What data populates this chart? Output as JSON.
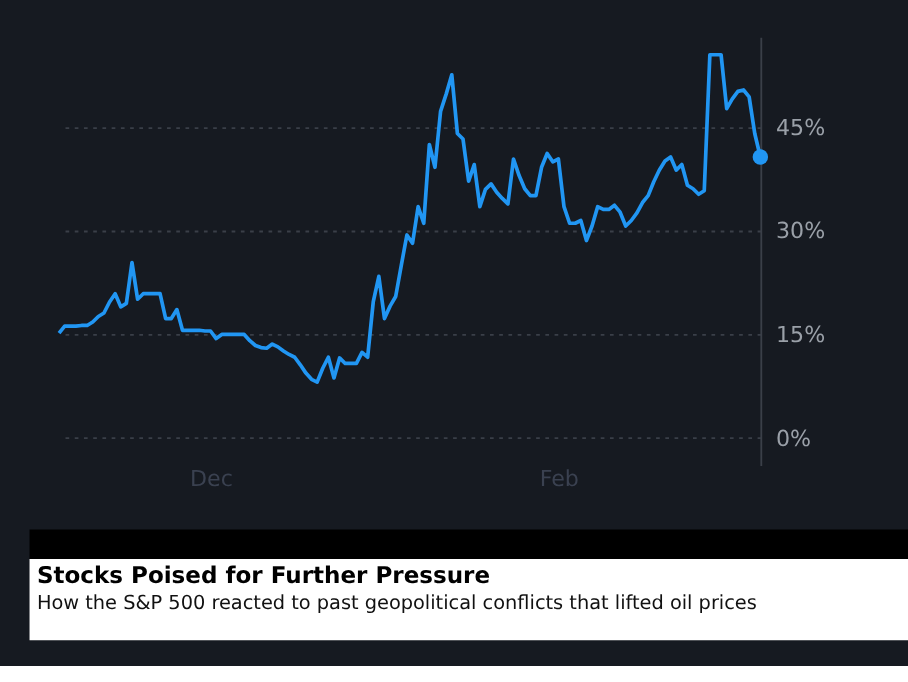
{
  "chart_data": {
    "type": "line",
    "title": "Stocks Poised for Further Pressure",
    "subtitle": "How the S&P 500 reacted to past geopolitical conflicts that lifted oil prices",
    "categories": [
      null,
      null,
      null,
      null,
      null,
      null,
      null,
      null,
      null,
      null,
      null,
      null,
      null,
      null,
      null,
      null,
      null,
      null,
      null,
      null,
      null,
      null,
      null,
      null,
      null,
      null,
      null,
      "Dec",
      null,
      null,
      null,
      null,
      null,
      null,
      null,
      null,
      null,
      null,
      null,
      null,
      null,
      null,
      null,
      null,
      null,
      null,
      null,
      null,
      null,
      null,
      null,
      null,
      null,
      null,
      null,
      null,
      null,
      null,
      null,
      null,
      null,
      null,
      null,
      null,
      null,
      null,
      null,
      null,
      null,
      null,
      null,
      null,
      null,
      null,
      null,
      null,
      null,
      null,
      null,
      null,
      null,
      null,
      null,
      null,
      null,
      null,
      null,
      null,
      null,
      "Feb",
      null,
      null,
      null,
      null,
      null,
      null,
      null,
      null,
      null,
      null,
      null,
      null,
      null,
      null,
      null,
      null,
      null,
      null,
      null,
      null,
      null,
      null,
      null,
      null,
      null,
      null,
      null,
      null,
      null,
      null,
      null,
      null,
      null,
      null,
      null,
      null
    ],
    "series": [
      {
        "color": "#2196f3",
        "values": [
          15.1,
          16.1,
          16.1,
          16.1,
          16.2,
          16.2,
          16.7,
          17.5,
          18.0,
          19.6,
          20.8,
          18.9,
          19.4,
          25.3,
          20.0,
          20.8,
          20.8,
          20.8,
          20.8,
          17.2,
          17.2,
          18.5,
          15.5,
          15.5,
          15.5,
          15.5,
          15.4,
          15.4,
          14.3,
          14.9,
          14.9,
          14.9,
          14.9,
          14.9,
          14.0,
          13.3,
          13.0,
          12.9,
          13.5,
          13.1,
          12.5,
          12.0,
          11.6,
          10.5,
          9.3,
          8.4,
          8.0,
          10.0,
          11.6,
          8.6,
          11.5,
          10.7,
          10.7,
          10.7,
          12.3,
          11.6,
          19.6,
          23.3,
          17.2,
          19.0,
          20.4,
          24.9,
          29.3,
          28.1,
          33.4,
          31.0,
          42.4,
          39.1,
          47.2,
          49.7,
          52.5,
          44.0,
          43.2,
          37.1,
          39.5,
          33.4,
          35.9,
          36.7,
          35.5,
          34.6,
          33.8,
          40.3,
          37.9,
          36.0,
          35.0,
          35.0,
          39.1,
          41.1,
          39.9,
          40.3,
          33.4,
          31.0,
          31.0,
          31.4,
          28.5,
          30.6,
          33.4,
          33.0,
          33.0,
          33.6,
          32.6,
          30.6,
          31.4,
          32.5,
          34.0,
          35.0,
          37.0,
          38.7,
          40.0,
          40.6,
          38.7,
          39.5,
          36.5,
          36.0,
          35.2,
          35.7,
          55.4,
          55.4,
          55.4,
          47.6,
          49.0,
          50.1,
          50.3,
          49.3,
          44.0,
          40.6
        ]
      },
      {
        "type": "scatter",
        "color": "#2196f3",
        "marker": "circle",
        "values": [
          null,
          null,
          null,
          null,
          null,
          null,
          null,
          null,
          null,
          null,
          null,
          null,
          null,
          null,
          null,
          null,
          null,
          null,
          null,
          null,
          null,
          null,
          null,
          null,
          null,
          null,
          null,
          null,
          null,
          null,
          null,
          null,
          null,
          null,
          null,
          null,
          null,
          null,
          null,
          null,
          null,
          null,
          null,
          null,
          null,
          null,
          null,
          null,
          null,
          null,
          null,
          null,
          null,
          null,
          null,
          null,
          null,
          null,
          null,
          null,
          null,
          null,
          null,
          null,
          null,
          null,
          null,
          null,
          null,
          null,
          null,
          null,
          null,
          null,
          null,
          null,
          null,
          null,
          null,
          null,
          null,
          null,
          null,
          null,
          null,
          null,
          null,
          null,
          null,
          null,
          null,
          null,
          null,
          null,
          null,
          null,
          null,
          null,
          null,
          null,
          null,
          null,
          null,
          null,
          null,
          null,
          null,
          null,
          null,
          null,
          null,
          null,
          null,
          null,
          null,
          null,
          null,
          null,
          null,
          null,
          null,
          null,
          null,
          null,
          null,
          40.6
        ]
      }
    ],
    "ylim": [
      -4,
      58
    ],
    "yticks": [
      {
        "value": 0,
        "label": "0%"
      },
      {
        "value": 15,
        "label": "15%"
      },
      {
        "value": 30,
        "label": "30%"
      },
      {
        "value": 45,
        "label": "45%"
      }
    ],
    "grid": "y",
    "line_style": "solid",
    "marker": "none"
  }
}
